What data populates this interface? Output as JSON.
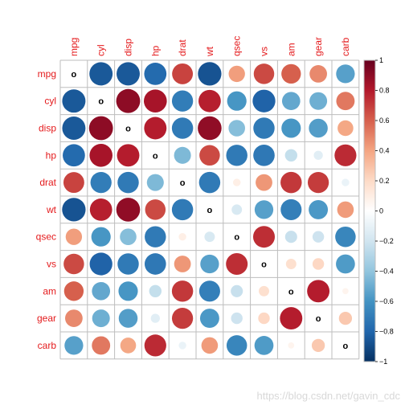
{
  "chart_data": {
    "type": "heatmap",
    "variables": [
      "mpg",
      "cyl",
      "disp",
      "hp",
      "drat",
      "wt",
      "qsec",
      "vs",
      "am",
      "gear",
      "carb"
    ],
    "diagonal_label": "o",
    "matrix": [
      [
        1.0,
        -0.85,
        -0.85,
        -0.78,
        0.68,
        -0.87,
        0.42,
        0.66,
        0.6,
        0.48,
        -0.55
      ],
      [
        -0.85,
        1.0,
        0.9,
        0.83,
        -0.7,
        0.78,
        -0.59,
        -0.81,
        -0.52,
        -0.49,
        0.53
      ],
      [
        -0.85,
        0.9,
        1.0,
        0.79,
        -0.71,
        0.89,
        -0.43,
        -0.71,
        -0.59,
        -0.56,
        0.39
      ],
      [
        -0.78,
        0.83,
        0.79,
        1.0,
        -0.45,
        0.66,
        -0.71,
        -0.72,
        -0.24,
        -0.13,
        0.75
      ],
      [
        0.68,
        -0.7,
        -0.71,
        -0.45,
        1.0,
        -0.71,
        0.09,
        0.44,
        0.71,
        0.7,
        -0.09
      ],
      [
        -0.87,
        0.78,
        0.89,
        0.66,
        -0.71,
        1.0,
        -0.17,
        -0.55,
        -0.69,
        -0.58,
        0.43
      ],
      [
        0.42,
        -0.59,
        -0.43,
        -0.71,
        0.09,
        -0.17,
        1.0,
        0.74,
        -0.23,
        -0.21,
        -0.66
      ],
      [
        0.66,
        -0.81,
        -0.71,
        -0.72,
        0.44,
        -0.55,
        0.74,
        1.0,
        0.17,
        0.21,
        -0.57
      ],
      [
        0.6,
        -0.52,
        -0.59,
        -0.24,
        0.71,
        -0.69,
        -0.23,
        0.17,
        1.0,
        0.79,
        0.06
      ],
      [
        0.48,
        -0.49,
        -0.56,
        -0.13,
        0.7,
        -0.58,
        -0.21,
        0.21,
        0.79,
        1.0,
        0.27
      ],
      [
        -0.55,
        0.53,
        0.39,
        0.75,
        -0.09,
        0.43,
        -0.66,
        -0.57,
        0.06,
        0.27,
        1.0
      ]
    ],
    "colorbar": {
      "range": [
        -1,
        1
      ],
      "ticks": [
        "1",
        "0.8",
        "0.6",
        "0.4",
        "0.2",
        "0",
        "−0.2",
        "−0.4",
        "−0.6",
        "−0.8",
        "−1"
      ],
      "colors": [
        "#67001F",
        "#B2182B",
        "#D6604D",
        "#F4A582",
        "#FDDBC7",
        "#FFFFFF",
        "#D1E5F0",
        "#92C5DE",
        "#4393C3",
        "#2166AC",
        "#053061"
      ]
    },
    "label_color": "#e41a1c",
    "grid": true,
    "legend": "right"
  },
  "watermark": "https://blog.csdn.net/gavin_cdc"
}
